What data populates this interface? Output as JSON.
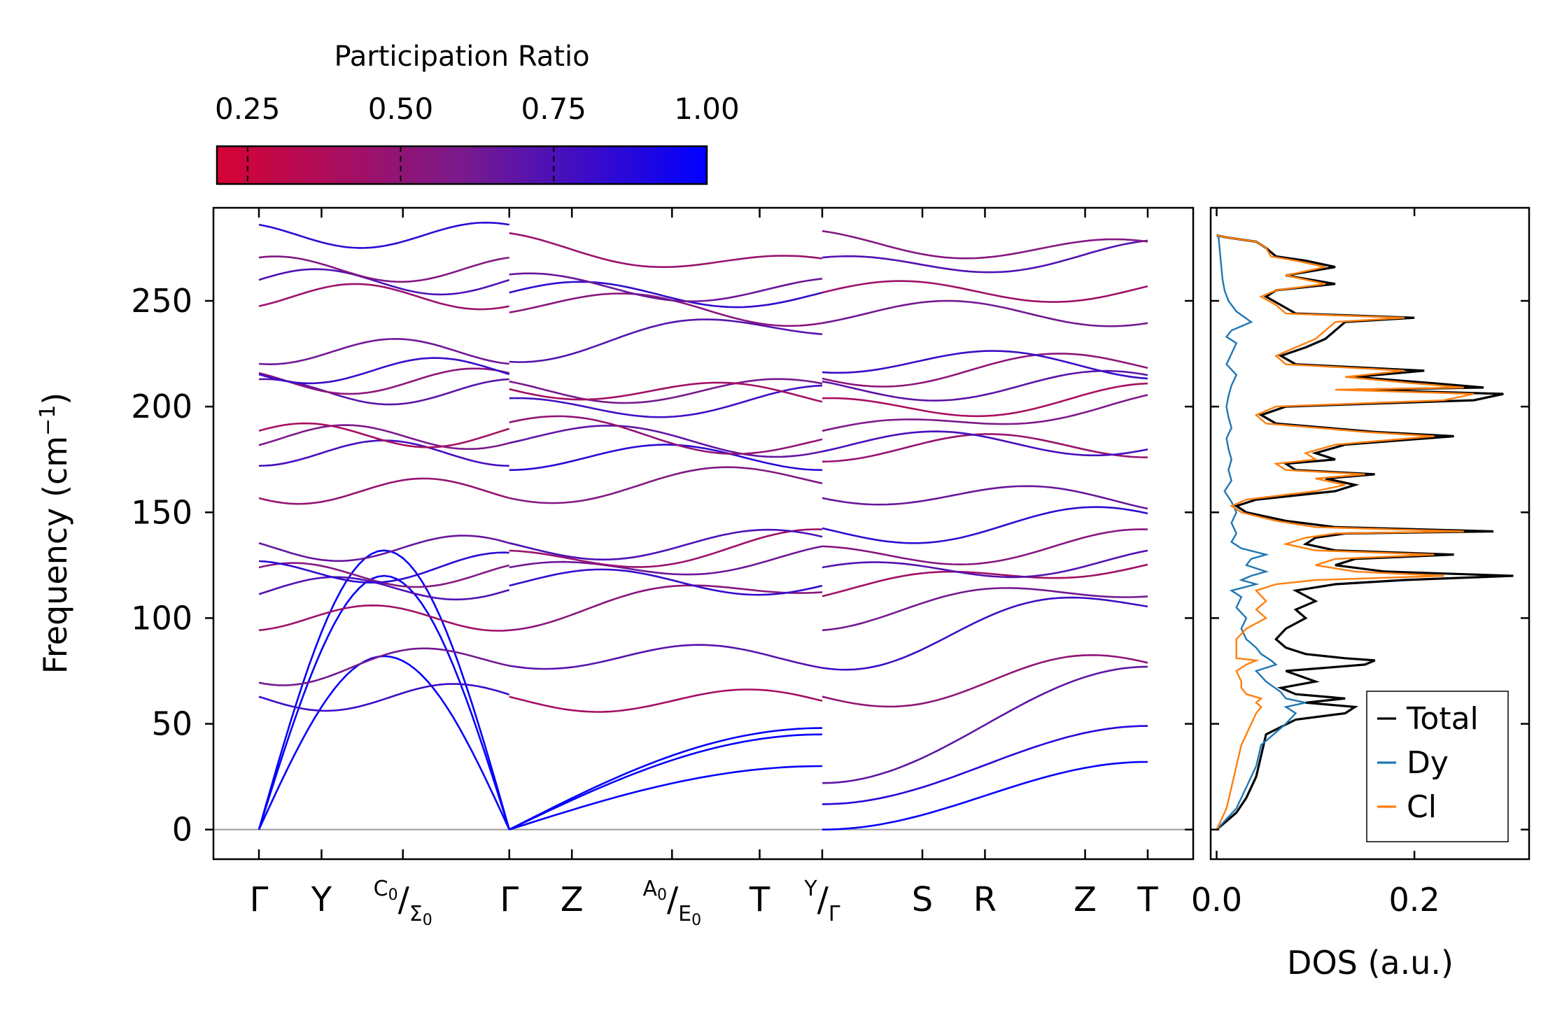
{
  "chart_data": [
    {
      "type": "line",
      "subtype": "phonon-band-structure",
      "ylabel_main": "Frequency (cm",
      "ylabel_sup": "−1",
      "ylabel_close": ")",
      "ylim": [
        -14,
        294
      ],
      "yticks": [
        {
          "value": 0,
          "label": "0"
        },
        {
          "value": 50,
          "label": "50"
        },
        {
          "value": 100,
          "label": "100"
        },
        {
          "value": 150,
          "label": "150"
        },
        {
          "value": 200,
          "label": "200"
        },
        {
          "value": 250,
          "label": "250"
        }
      ],
      "kpoint_labels": [
        {
          "k": 0.0,
          "main": "Γ"
        },
        {
          "k": 1.0,
          "main": "Y"
        },
        {
          "k": 2.3,
          "sup": "C",
          "sup_sub": "0",
          "main": "/",
          "sub": "Σ",
          "sub_sub": "0"
        },
        {
          "k": 4.0,
          "main": "Γ"
        },
        {
          "k": 5.0,
          "main": "Z"
        },
        {
          "k": 6.6,
          "sup": "A",
          "sup_sub": "0",
          "main": "/",
          "sub": "E",
          "sub_sub": "0"
        },
        {
          "k": 8.0,
          "main": "T"
        },
        {
          "k": 9.0,
          "sup": "Y",
          "main": "/",
          "sub": "Γ"
        },
        {
          "k": 10.6,
          "main": "S"
        },
        {
          "k": 11.6,
          "main": "R"
        },
        {
          "k": 13.2,
          "main": "Z"
        },
        {
          "k": 14.2,
          "main": "T"
        }
      ],
      "kmax": 14.2,
      "segment_breaks": [
        4.0,
        9.0
      ],
      "segments": [
        [
          0.0,
          4.0
        ],
        [
          4.0,
          9.0
        ],
        [
          9.0,
          14.2
        ]
      ],
      "band_endpoints": [
        [
          [
            0,
            0
          ],
          [
            0,
            0
          ],
          [
            0,
            0
          ],
          [
            62,
            63
          ],
          [
            74,
            82
          ],
          [
            100,
            100
          ],
          [
            113,
            115
          ],
          [
            120,
            121
          ],
          [
            121,
            125
          ],
          [
            133,
            133
          ],
          [
            160,
            160
          ],
          [
            178,
            178
          ],
          [
            185,
            186
          ],
          [
            186,
            187
          ],
          [
            207,
            207
          ],
          [
            212,
            212
          ],
          [
            217,
            217
          ],
          [
            226,
            226
          ],
          [
            252,
            252
          ],
          [
            259,
            259
          ],
          [
            265,
            265
          ],
          [
            281,
            281
          ]
        ],
        [
          [
            0,
            48
          ],
          [
            0,
            45
          ],
          [
            0,
            30
          ],
          [
            62,
            60
          ],
          [
            82,
            81
          ],
          [
            100,
            118
          ],
          [
            117,
            117
          ],
          [
            120,
            130
          ],
          [
            126,
            136
          ],
          [
            133,
            136
          ],
          [
            160,
            167
          ],
          [
            176,
            176
          ],
          [
            186,
            182
          ],
          [
            190,
            182
          ],
          [
            198,
            204
          ],
          [
            208,
            207
          ],
          [
            210,
            204
          ],
          [
            227,
            240
          ],
          [
            249,
            244
          ],
          [
            253,
            253
          ],
          [
            257,
            255
          ],
          [
            277,
            265
          ]
        ],
        [
          [
            0,
            32
          ],
          [
            12,
            49
          ],
          [
            22,
            77
          ],
          [
            62,
            78
          ],
          [
            81,
            110
          ],
          [
            100,
            116
          ],
          [
            112,
            127
          ],
          [
            120,
            128
          ],
          [
            128,
            136
          ],
          [
            140,
            147
          ],
          [
            160,
            155
          ],
          [
            180,
            182
          ],
          [
            182,
            183
          ],
          [
            186,
            203
          ],
          [
            198,
            205
          ],
          [
            208,
            211
          ],
          [
            215,
            220
          ],
          [
            222,
            219
          ],
          [
            244,
            244
          ],
          [
            253,
            256
          ],
          [
            265,
            273
          ],
          [
            278,
            273
          ]
        ]
      ],
      "band_color_legend": {
        "low": "#d60233",
        "high": "#0000ff"
      }
    },
    {
      "type": "colorbar",
      "title": "Participation Ratio",
      "range": [
        0.2,
        1.0
      ],
      "ticks": [
        {
          "value": 0.25,
          "label": "0.25"
        },
        {
          "value": 0.5,
          "label": "0.50"
        },
        {
          "value": 0.75,
          "label": "0.75"
        },
        {
          "value": 1.0,
          "label": "1.00"
        }
      ],
      "colors": [
        "#d60233",
        "#7a1a8c",
        "#0000ff"
      ]
    },
    {
      "type": "line",
      "subtype": "density-of-states",
      "xlabel": "DOS (a.u.)",
      "xlim": [
        -0.006,
        0.316
      ],
      "xticks": [
        {
          "value": 0.0,
          "label": "0.0"
        },
        {
          "value": 0.2,
          "label": "0.2"
        }
      ],
      "legend_position": "lower-right",
      "series": [
        {
          "name": "Total",
          "color": "#000000",
          "freq": [
            0,
            8,
            15,
            25,
            35,
            45,
            52,
            55,
            58,
            60,
            62,
            64,
            67,
            70,
            75,
            78,
            80,
            81,
            83,
            86,
            90,
            95,
            100,
            104,
            108,
            113,
            116,
            118,
            120,
            122,
            125,
            128,
            130,
            132,
            135,
            138,
            140,
            141,
            143,
            146,
            150,
            153,
            156,
            160,
            163,
            166,
            168,
            170,
            173,
            175,
            178,
            182,
            186,
            188,
            192,
            196,
            200,
            203,
            206,
            208,
            209,
            211,
            214,
            217,
            220,
            224,
            228,
            232,
            236,
            240,
            242,
            244,
            248,
            252,
            255,
            258,
            262,
            266,
            269,
            271,
            275,
            278,
            280,
            281
          ],
          "dos": [
            0,
            0.02,
            0.03,
            0.04,
            0.045,
            0.05,
            0.08,
            0.13,
            0.14,
            0.09,
            0.13,
            0.08,
            0.065,
            0.1,
            0.07,
            0.15,
            0.16,
            0.13,
            0.09,
            0.07,
            0.06,
            0.07,
            0.09,
            0.08,
            0.1,
            0.08,
            0.12,
            0.19,
            0.3,
            0.17,
            0.12,
            0.14,
            0.24,
            0.12,
            0.09,
            0.1,
            0.13,
            0.28,
            0.12,
            0.07,
            0.03,
            0.02,
            0.04,
            0.12,
            0.14,
            0.11,
            0.16,
            0.08,
            0.07,
            0.12,
            0.1,
            0.13,
            0.24,
            0.16,
            0.06,
            0.045,
            0.07,
            0.26,
            0.29,
            0.14,
            0.27,
            0.22,
            0.14,
            0.21,
            0.08,
            0.065,
            0.09,
            0.11,
            0.12,
            0.13,
            0.2,
            0.08,
            0.065,
            0.05,
            0.06,
            0.12,
            0.07,
            0.12,
            0.09,
            0.06,
            0.05,
            0.04,
            0.01,
            0
          ]
        },
        {
          "name": "Dy",
          "color": "#1f77b4",
          "freq": [
            0,
            10,
            20,
            30,
            40,
            50,
            55,
            58,
            60,
            62,
            65,
            70,
            75,
            78,
            80,
            83,
            86,
            90,
            95,
            100,
            105,
            110,
            113,
            116,
            118,
            120,
            122,
            125,
            128,
            130,
            133,
            136,
            140,
            145,
            150,
            155,
            160,
            165,
            170,
            175,
            180,
            185,
            190,
            195,
            200,
            205,
            210,
            215,
            220,
            225,
            230,
            233,
            236,
            240,
            245,
            250,
            255,
            260,
            265,
            270,
            275,
            280,
            281
          ],
          "dos": [
            0,
            0.02,
            0.03,
            0.04,
            0.045,
            0.07,
            0.08,
            0.07,
            0.09,
            0.07,
            0.065,
            0.05,
            0.04,
            0.06,
            0.055,
            0.045,
            0.04,
            0.03,
            0.025,
            0.03,
            0.02,
            0.025,
            0.015,
            0.04,
            0.025,
            0.035,
            0.05,
            0.03,
            0.035,
            0.05,
            0.025,
            0.015,
            0.02,
            0.015,
            0.02,
            0.015,
            0.008,
            0.015,
            0.012,
            0.015,
            0.012,
            0.01,
            0.015,
            0.012,
            0.01,
            0.012,
            0.015,
            0.02,
            0.01,
            0.015,
            0.02,
            0.01,
            0.015,
            0.035,
            0.02,
            0.012,
            0.008,
            0.006,
            0.005,
            0.004,
            0.003,
            0.002,
            0
          ]
        },
        {
          "name": "Cl",
          "color": "#ff7f0e",
          "freq": [
            0,
            10,
            20,
            30,
            40,
            45,
            50,
            55,
            58,
            60,
            62,
            64,
            67,
            70,
            75,
            78,
            80,
            81,
            83,
            86,
            90,
            95,
            100,
            104,
            108,
            113,
            116,
            118,
            120,
            122,
            125,
            128,
            130,
            132,
            135,
            138,
            140,
            141,
            143,
            146,
            150,
            153,
            156,
            160,
            163,
            166,
            168,
            170,
            173,
            175,
            178,
            182,
            186,
            188,
            192,
            196,
            200,
            203,
            206,
            208,
            209,
            211,
            214,
            217,
            220,
            224,
            228,
            232,
            236,
            240,
            242,
            244,
            248,
            252,
            255,
            258,
            262,
            266,
            269,
            271,
            275,
            278,
            280,
            281
          ],
          "dos": [
            0,
            0.01,
            0.015,
            0.02,
            0.025,
            0.03,
            0.035,
            0.04,
            0.045,
            0.04,
            0.045,
            0.03,
            0.025,
            0.025,
            0.02,
            0.03,
            0.04,
            0.02,
            0.02,
            0.02,
            0.02,
            0.03,
            0.05,
            0.04,
            0.05,
            0.04,
            0.06,
            0.1,
            0.23,
            0.14,
            0.1,
            0.12,
            0.22,
            0.1,
            0.07,
            0.09,
            0.12,
            0.25,
            0.1,
            0.06,
            0.025,
            0.015,
            0.03,
            0.1,
            0.13,
            0.1,
            0.15,
            0.07,
            0.06,
            0.1,
            0.09,
            0.12,
            0.22,
            0.15,
            0.05,
            0.04,
            0.06,
            0.23,
            0.26,
            0.12,
            0.25,
            0.2,
            0.13,
            0.19,
            0.07,
            0.06,
            0.08,
            0.1,
            0.11,
            0.12,
            0.19,
            0.07,
            0.06,
            0.045,
            0.06,
            0.11,
            0.07,
            0.11,
            0.08,
            0.055,
            0.05,
            0.04,
            0.01,
            0
          ]
        }
      ]
    }
  ]
}
